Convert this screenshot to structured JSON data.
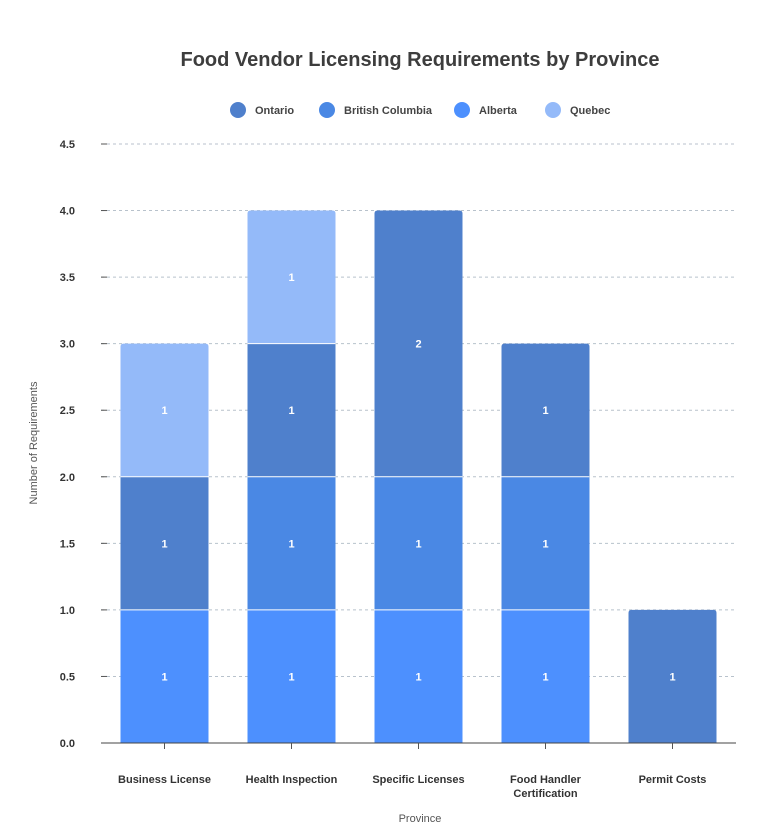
{
  "chart_data": {
    "type": "bar",
    "stacked": true,
    "title": "Food Vendor Licensing Requirements by Province",
    "xlabel": "Province",
    "ylabel": "Number of Requirements",
    "ylim": [
      0,
      4.5
    ],
    "yticks": [
      "0.0",
      "0.5",
      "1.0",
      "1.5",
      "2.0",
      "2.5",
      "3.0",
      "3.5",
      "4.0",
      "4.5"
    ],
    "grid": true,
    "legend_position": "top",
    "categories": [
      [
        "Business License"
      ],
      [
        "Health Inspection"
      ],
      [
        "Specific Licenses"
      ],
      [
        "Food Handler",
        "Certification"
      ],
      [
        "Permit Costs"
      ]
    ],
    "series": [
      {
        "name": "Ontario",
        "color": "#4f80cc",
        "values": [
          1,
          1,
          2,
          1,
          1
        ]
      },
      {
        "name": "British Columbia",
        "color": "#4a88e4",
        "values": [
          0,
          1,
          1,
          1,
          0
        ]
      },
      {
        "name": "Alberta",
        "color": "#4d90fe",
        "values": [
          1,
          1,
          1,
          1,
          0
        ]
      },
      {
        "name": "Quebec",
        "color": "#94baf9",
        "values": [
          1,
          1,
          0,
          0,
          0
        ]
      }
    ],
    "stack_order": [
      "Alberta",
      "British Columbia",
      "Ontario",
      "Quebec"
    ]
  }
}
